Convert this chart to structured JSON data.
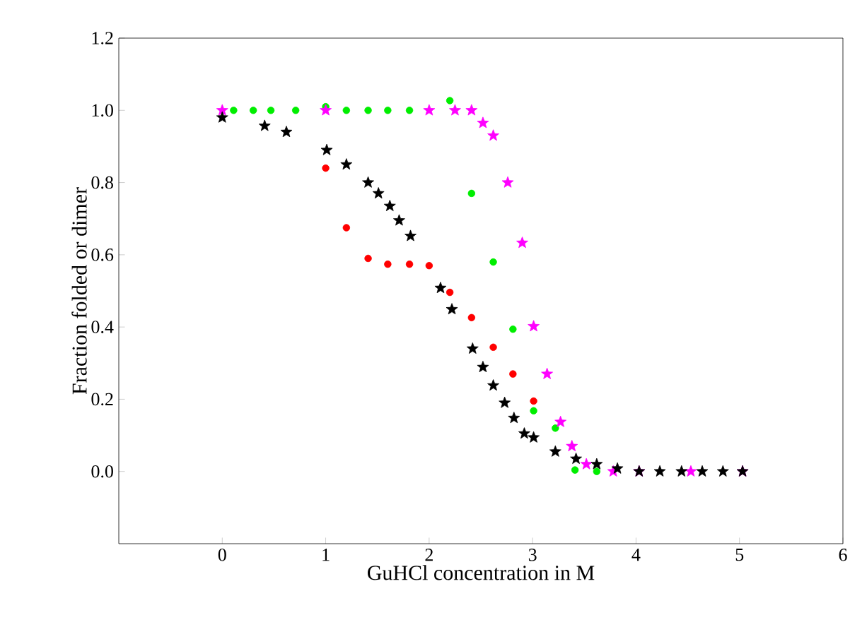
{
  "chart_data": {
    "type": "scatter",
    "xlabel": "GuHCl concentration in M",
    "ylabel": "Fraction folded or dimer",
    "xlim": [
      -1,
      6
    ],
    "ylim": [
      -0.2,
      1.2
    ],
    "xticks": [
      0,
      1,
      2,
      3,
      4,
      5,
      6
    ],
    "yticks": [
      {
        "value": 0,
        "label": "0.0"
      },
      {
        "value": 0.2,
        "label": "0.2"
      },
      {
        "value": 0.4,
        "label": "0.4"
      },
      {
        "value": 0.6,
        "label": "0.6"
      },
      {
        "value": 0.8,
        "label": "0.8"
      },
      {
        "value": 1.0,
        "label": "1.0"
      },
      {
        "value": 1.2,
        "label": "1.2"
      }
    ],
    "grid": false,
    "series": [
      {
        "color": "#ff0000",
        "marker": "circle",
        "x": [
          1.0,
          1.2,
          1.41,
          1.6,
          1.81,
          2.0,
          2.2,
          2.41,
          2.62,
          2.81,
          3.01
        ],
        "values": [
          0.84,
          0.675,
          0.59,
          0.574,
          0.574,
          0.57,
          0.496,
          0.426,
          0.344,
          0.27,
          0.195
        ]
      },
      {
        "color": "#00ee00",
        "marker": "circle",
        "x": [
          0.11,
          0.3,
          0.47,
          0.71,
          1.0,
          1.2,
          1.41,
          1.6,
          1.81,
          2.2,
          2.41,
          2.62,
          2.81,
          3.01,
          3.22,
          3.41,
          3.62
        ],
        "values": [
          1.0,
          1.0,
          1.0,
          1.0,
          1.01,
          1.0,
          1.0,
          1.0,
          1.0,
          1.027,
          0.77,
          0.58,
          0.394,
          0.168,
          0.12,
          0.004,
          0.0
        ]
      },
      {
        "color": "#ff00ff",
        "marker": "star",
        "x": [
          0,
          1.0,
          2.0,
          2.25,
          2.41,
          2.52,
          2.62,
          2.76,
          2.9,
          3.01,
          3.14,
          3.27,
          3.38,
          3.52,
          3.78,
          4.03,
          4.53,
          5.03
        ],
        "values": [
          1.0,
          1.0,
          1.0,
          1.0,
          1.0,
          0.965,
          0.93,
          0.8,
          0.633,
          0.402,
          0.27,
          0.137,
          0.07,
          0.02,
          0.0,
          0.0,
          0.0,
          0.0
        ]
      },
      {
        "color": "#000000",
        "marker": "star",
        "x": [
          0,
          0.41,
          0.62,
          1.01,
          1.2,
          1.41,
          1.51,
          1.62,
          1.71,
          1.82,
          2.11,
          2.22,
          2.42,
          2.52,
          2.62,
          2.73,
          2.82,
          2.92,
          3.01,
          3.22,
          3.42,
          3.62,
          3.82,
          4.03,
          4.23,
          4.44,
          4.64,
          4.84,
          5.03
        ],
        "values": [
          0.98,
          0.957,
          0.94,
          0.89,
          0.85,
          0.8,
          0.77,
          0.735,
          0.695,
          0.652,
          0.508,
          0.449,
          0.34,
          0.289,
          0.238,
          0.19,
          0.148,
          0.105,
          0.094,
          0.055,
          0.035,
          0.02,
          0.008,
          0.0,
          0.0,
          0.0,
          0.0,
          0.0,
          0.0
        ]
      }
    ]
  }
}
